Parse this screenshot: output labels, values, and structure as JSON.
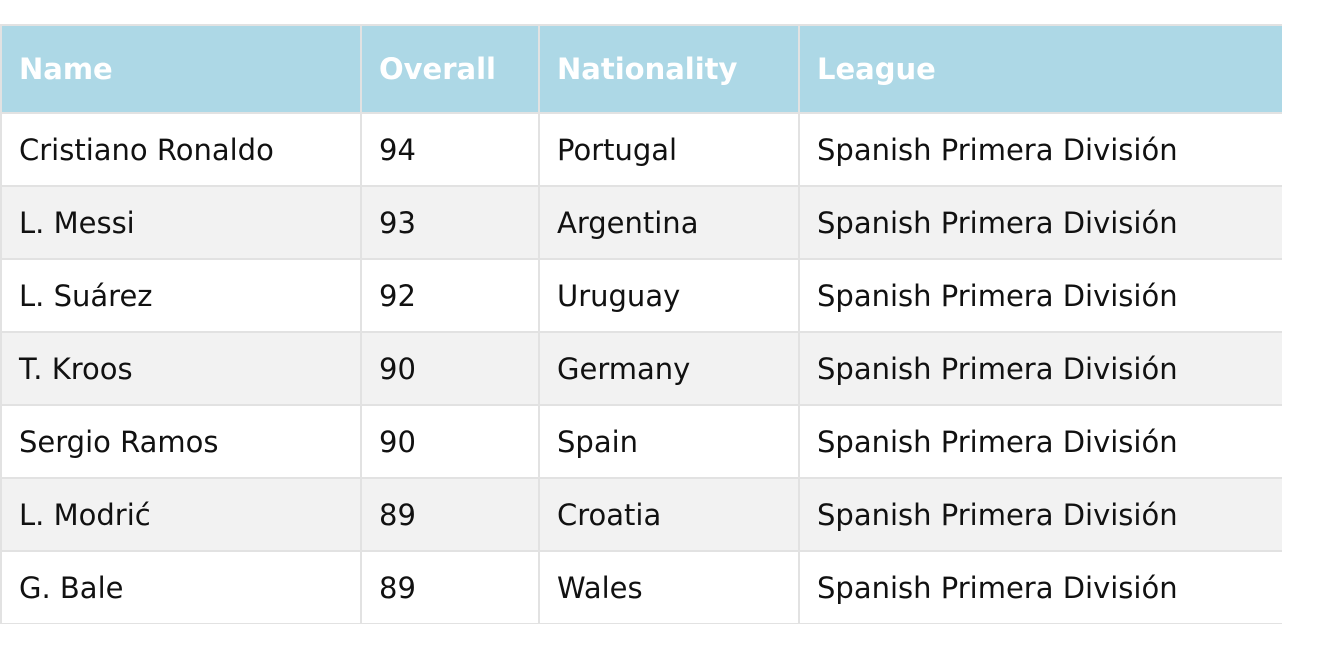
{
  "table": {
    "headers": [
      "Name",
      "Overall",
      "Nationality",
      "League"
    ],
    "rows": [
      [
        "Cristiano Ronaldo",
        "94",
        "Portugal",
        "Spanish Primera División"
      ],
      [
        "L. Messi",
        "93",
        "Argentina",
        "Spanish Primera División"
      ],
      [
        "L. Suárez",
        "92",
        "Uruguay",
        "Spanish Primera División"
      ],
      [
        "T. Kroos",
        "90",
        "Germany",
        "Spanish Primera División"
      ],
      [
        "Sergio Ramos",
        "90",
        "Spain",
        "Spanish Primera División"
      ],
      [
        "L. Modrić",
        "89",
        "Croatia",
        "Spanish Primera División"
      ],
      [
        "G. Bale",
        "89",
        "Wales",
        "Spanish Primera División"
      ]
    ]
  },
  "colors": {
    "header_background": "#add8e6",
    "header_text": "#ffffff",
    "row_alt_background": "#f2f2f2",
    "border": "#e2e2e2"
  }
}
